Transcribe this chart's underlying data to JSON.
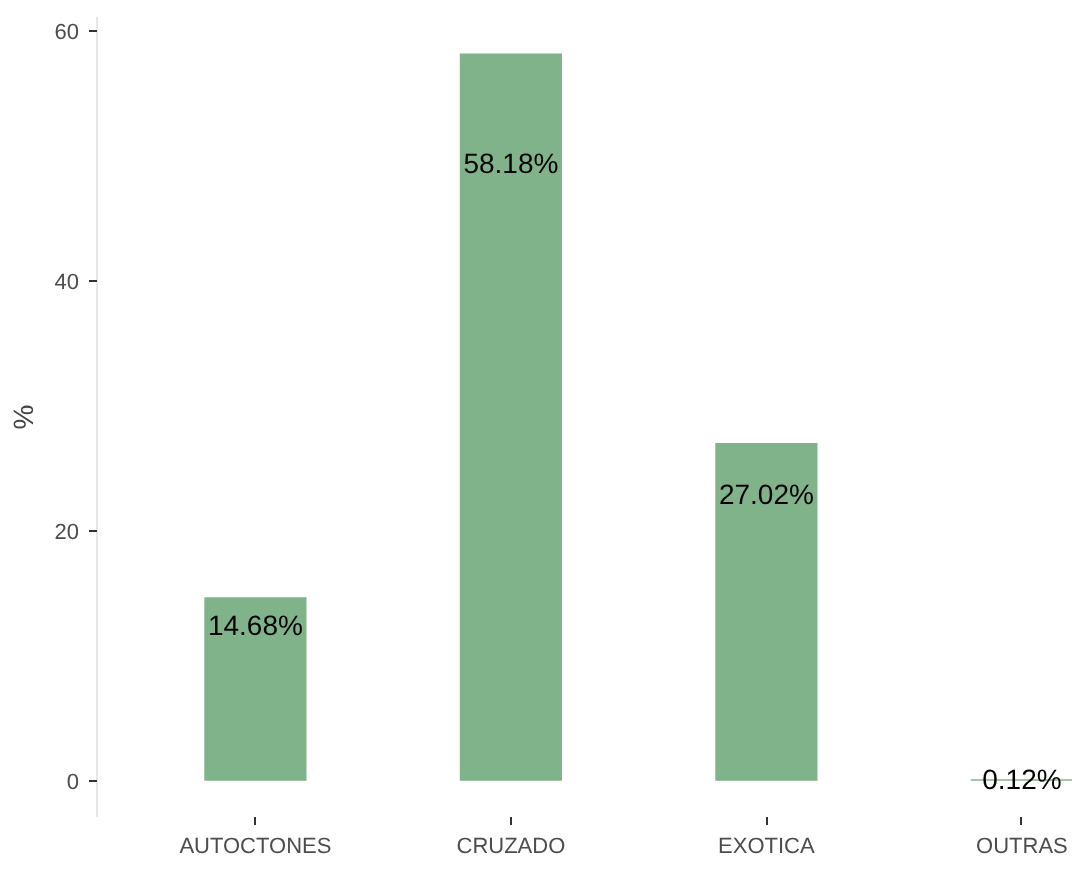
{
  "chart_data": {
    "type": "bar",
    "ylabel": "%",
    "categories": [
      "AUTOCTONES",
      "CRUZADO",
      "EXOTICA",
      "OUTRAS"
    ],
    "values": [
      14.68,
      58.18,
      27.02,
      0.12
    ],
    "value_labels": [
      "14.68%",
      "58.18%",
      "27.02%",
      "0.12%"
    ],
    "color": "#80b38a",
    "ylim": [
      -2.9,
      61.1
    ],
    "yticks": [
      0,
      20,
      40,
      60
    ],
    "grid": false
  }
}
